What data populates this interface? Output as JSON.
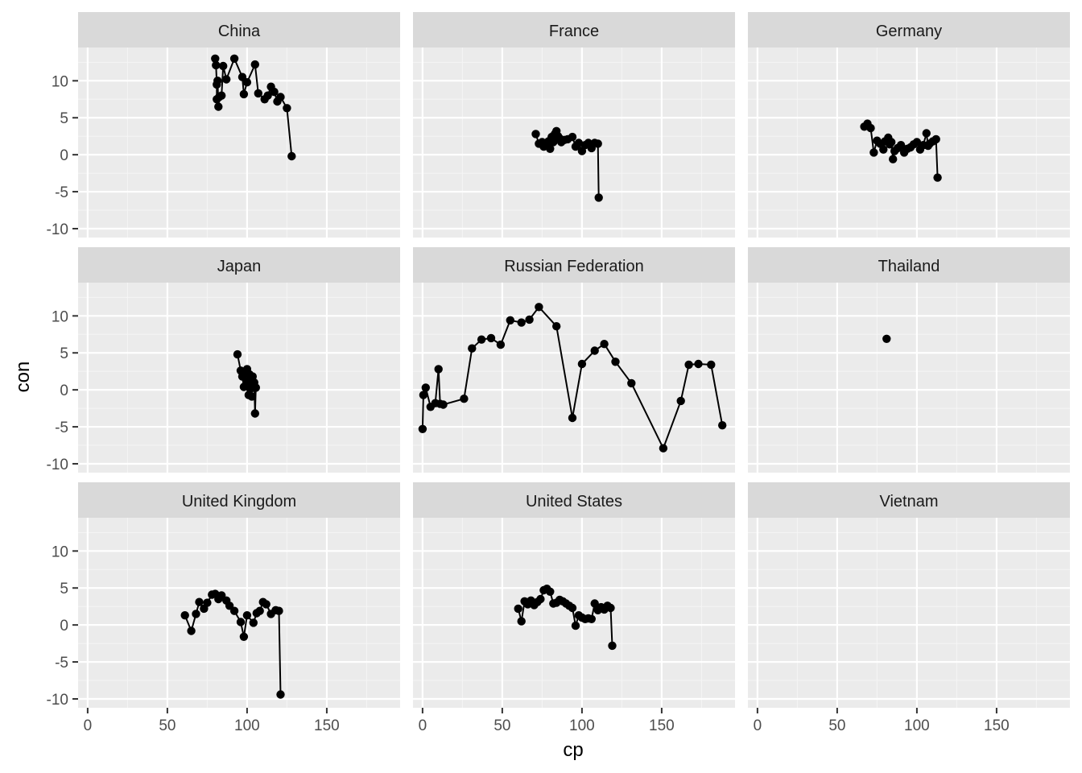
{
  "chart_data": {
    "type": "line",
    "title": "",
    "xlabel": "cp",
    "ylabel": "con",
    "xlim": [
      -6,
      196
    ],
    "ylim": [
      -11.2,
      14.5
    ],
    "x_ticks": [
      0,
      50,
      100,
      150
    ],
    "x_tick_labels": [
      "0",
      "50",
      "100",
      "150"
    ],
    "y_ticks": [
      10,
      5,
      0,
      -5,
      -10
    ],
    "y_tick_labels": [
      "10",
      "5",
      "0",
      "-5",
      "-10"
    ],
    "grid": true,
    "facets": [
      {
        "label": "China",
        "x": [
          80,
          80.5,
          81,
          81,
          81.5,
          82,
          82.5,
          84,
          85,
          87,
          92,
          97,
          98,
          100,
          105,
          107,
          111,
          113,
          115,
          117,
          119,
          121,
          125,
          128
        ],
        "y": [
          13,
          12.1,
          9.5,
          7.5,
          10,
          6.5,
          7.8,
          8,
          12,
          10.2,
          13,
          10.5,
          8.2,
          9.8,
          12.2,
          8.3,
          7.5,
          8,
          9.2,
          8.5,
          7.2,
          7.8,
          6.3,
          -0.2
        ]
      },
      {
        "label": "France",
        "x": [
          71,
          73,
          75,
          76,
          78,
          79,
          80,
          81,
          82,
          83,
          84,
          85,
          86,
          87,
          89,
          91,
          94,
          96,
          98,
          100,
          102,
          104,
          106,
          108,
          110,
          110.5
        ],
        "y": [
          2.8,
          1.5,
          1.7,
          1.1,
          1.3,
          1.8,
          0.8,
          2.4,
          1.7,
          2.8,
          3.2,
          2.5,
          2.2,
          1.7,
          2.0,
          2.1,
          2.4,
          1.1,
          1.6,
          0.5,
          1.3,
          1.6,
          0.9,
          1.6,
          1.5,
          -5.8
        ]
      },
      {
        "label": "Germany",
        "x": [
          67,
          69,
          71,
          73,
          75,
          77,
          79,
          80,
          82,
          83,
          84,
          85,
          86,
          88,
          90,
          92,
          94,
          96,
          98,
          100,
          102,
          104,
          106,
          107,
          108,
          110,
          112,
          113
        ],
        "y": [
          3.8,
          4.2,
          3.6,
          0.3,
          1.9,
          1.5,
          0.7,
          1.8,
          2.3,
          1.4,
          1.7,
          -0.6,
          0.5,
          0.9,
          1.3,
          0.3,
          0.8,
          1.0,
          1.4,
          1.7,
          0.7,
          1.3,
          2.9,
          1.2,
          1.5,
          1.8,
          2.1,
          -3.1
        ]
      },
      {
        "label": "Japan",
        "x": [
          94,
          96,
          97,
          98,
          99,
          100,
          100.5,
          101,
          101.5,
          102,
          102.5,
          103,
          103.5,
          104,
          104.5,
          105,
          105.5
        ],
        "y": [
          4.8,
          2.6,
          1.8,
          0.4,
          2.3,
          2.8,
          1.2,
          -0.7,
          2.1,
          0.1,
          1.5,
          -0.9,
          1.8,
          0.6,
          1.0,
          -3.2,
          0.3
        ]
      },
      {
        "label": "Russian Federation",
        "x": [
          0,
          0.5,
          2,
          5,
          8,
          10,
          11,
          13,
          26,
          31,
          37,
          43,
          49,
          55,
          62,
          67,
          73,
          84,
          94,
          100,
          108,
          114,
          121,
          131,
          151,
          162,
          167,
          173,
          181,
          188
        ],
        "y": [
          -5.3,
          -0.7,
          0.3,
          -2.3,
          -1.8,
          2.8,
          -1.9,
          -2.0,
          -1.2,
          5.6,
          6.8,
          7.0,
          6.1,
          9.4,
          9.1,
          9.5,
          11.2,
          8.6,
          -3.8,
          3.5,
          5.3,
          6.2,
          3.8,
          0.9,
          -7.9,
          -1.5,
          3.4,
          3.5,
          3.4,
          -4.8
        ]
      },
      {
        "label": "Thailand",
        "x": [
          81
        ],
        "y": [
          6.9
        ]
      },
      {
        "label": "United Kingdom",
        "x": [
          61,
          65,
          68,
          70,
          73,
          75,
          78,
          80,
          82,
          84,
          87,
          89,
          92,
          96,
          98,
          100,
          104,
          106,
          108,
          110,
          112,
          115,
          118,
          120,
          121
        ],
        "y": [
          1.3,
          -0.8,
          1.5,
          3.1,
          2.2,
          3.0,
          4.1,
          4.2,
          3.5,
          4.0,
          3.3,
          2.6,
          1.9,
          0.4,
          -1.6,
          1.3,
          0.3,
          1.6,
          1.9,
          3.1,
          2.8,
          1.5,
          2.0,
          1.9,
          -9.4
        ]
      },
      {
        "label": "United States",
        "x": [
          60,
          62,
          64,
          66,
          68,
          70,
          72,
          74,
          76,
          78,
          80,
          82,
          84,
          86,
          88,
          90,
          92,
          94,
          96,
          98,
          100,
          102,
          104,
          106,
          108,
          110,
          112,
          114,
          116,
          118,
          119
        ],
        "y": [
          2.2,
          0.5,
          3.2,
          2.8,
          3.3,
          2.7,
          3.1,
          3.5,
          4.7,
          4.9,
          4.5,
          2.9,
          3.0,
          3.4,
          3.2,
          2.9,
          2.6,
          2.3,
          -0.1,
          1.3,
          1.0,
          0.8,
          0.9,
          0.8,
          2.9,
          2.0,
          2.4,
          2.1,
          2.6,
          2.3,
          -2.8
        ]
      },
      {
        "label": "Vietnam",
        "x": [],
        "y": []
      }
    ]
  }
}
